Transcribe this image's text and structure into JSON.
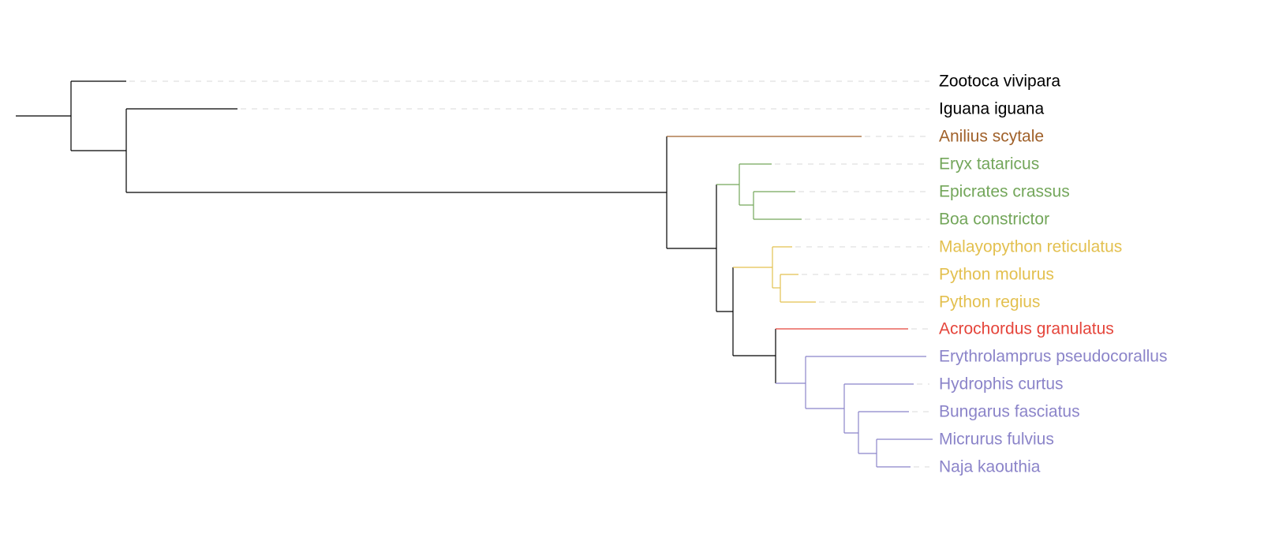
{
  "colors": {
    "outgroup": "#000000",
    "aniliidae": "#a0612a",
    "boidae": "#73a65a",
    "pythonidae": "#e3c04f",
    "acrochordidae": "#e5453b",
    "colubroidea": "#8b84c9"
  },
  "tree": {
    "tips": [
      {
        "label": "Zootoca vivipara",
        "color": "#000000"
      },
      {
        "label": "Iguana iguana",
        "color": "#000000"
      },
      {
        "label": "Anilius scytale",
        "color": "#a0612a"
      },
      {
        "label": "Eryx tataricus",
        "color": "#73a65a"
      },
      {
        "label": "Epicrates crassus",
        "color": "#73a65a"
      },
      {
        "label": "Boa constrictor",
        "color": "#73a65a"
      },
      {
        "label": "Malayopython reticulatus",
        "color": "#e3c04f"
      },
      {
        "label": "Python molurus",
        "color": "#e3c04f"
      },
      {
        "label": "Python regius",
        "color": "#e3c04f"
      },
      {
        "label": "Acrochordus granulatus",
        "color": "#e5453b"
      },
      {
        "label": "Erythrolamprus pseudocorallus",
        "color": "#8b84c9"
      },
      {
        "label": "Hydrophis curtus",
        "color": "#8b84c9"
      },
      {
        "label": "Bungarus fasciatus",
        "color": "#8b84c9"
      },
      {
        "label": "Micrurus fulvius",
        "color": "#8b84c9"
      },
      {
        "label": "Naja kaouthia",
        "color": "#8b84c9"
      }
    ]
  }
}
